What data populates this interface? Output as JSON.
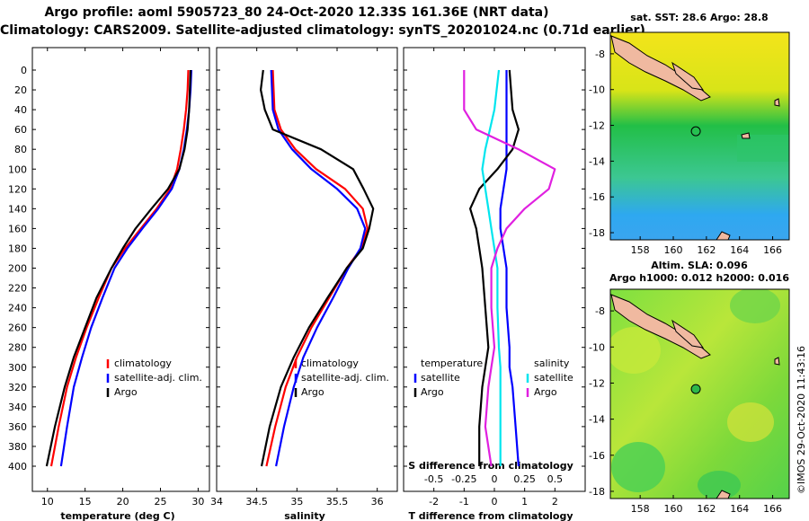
{
  "header": {
    "line1": "Argo profile: aoml 5905723_80 24-Oct-2020 12.33S 161.36E (NRT data)",
    "line2": "Climatology: CARS2009. Satellite-adjusted climatology: synTS_20201024.nc (0.71d earlier)"
  },
  "colors": {
    "climatology": "#ff0000",
    "satellite": "#0000ff",
    "argo": "#000000",
    "sat_salinity": "#00e5ee",
    "argo_salinity": "#e020e0"
  },
  "legend": {
    "climatology": "climatology",
    "satellite_adj": "satellite-adj. clim.",
    "argo": "Argo",
    "temperature_header": "temperature",
    "salinity_header": "salinity",
    "satellite": "satellite"
  },
  "chart_data": [
    {
      "type": "line",
      "title": "",
      "xlabel": "temperature (deg C)",
      "ylabel": "depth",
      "xlim": [
        8,
        31.5
      ],
      "ylim": [
        400,
        0
      ],
      "x_ticks": [
        10,
        15,
        20,
        25,
        30
      ],
      "y_ticks": [
        0,
        20,
        40,
        60,
        80,
        100,
        120,
        140,
        160,
        180,
        200,
        220,
        240,
        260,
        280,
        300,
        320,
        340,
        360,
        380,
        400
      ],
      "series": [
        {
          "name": "climatology",
          "x": [
            28.7,
            28.6,
            28.4,
            28.1,
            27.7,
            27.2,
            26.3,
            24.5,
            22.4,
            20.3,
            18.5,
            16.8,
            15.2,
            13.8,
            12.6,
            11.5,
            10.5
          ],
          "y": [
            0,
            20,
            40,
            60,
            80,
            100,
            120,
            140,
            160,
            180,
            200,
            230,
            260,
            290,
            320,
            360,
            400
          ]
        },
        {
          "name": "satellite-adj. clim.",
          "x": [
            29.1,
            29.0,
            28.8,
            28.5,
            28.1,
            27.5,
            26.5,
            24.7,
            22.6,
            20.6,
            18.9,
            17.3,
            15.8,
            14.6,
            13.5,
            12.6,
            11.8
          ],
          "y": [
            0,
            20,
            40,
            60,
            80,
            100,
            120,
            140,
            160,
            180,
            200,
            230,
            260,
            290,
            320,
            360,
            400
          ]
        },
        {
          "name": "Argo",
          "x": [
            29.0,
            28.9,
            28.8,
            28.6,
            28.2,
            27.5,
            26.0,
            23.8,
            21.7,
            20.0,
            18.5,
            16.5,
            15.0,
            13.5,
            12.3,
            11.0,
            9.9
          ],
          "y": [
            0,
            20,
            40,
            60,
            80,
            100,
            120,
            140,
            160,
            180,
            200,
            230,
            260,
            290,
            320,
            360,
            400
          ]
        }
      ]
    },
    {
      "type": "line",
      "title": "",
      "xlabel": "salinity",
      "ylabel": "",
      "xlim": [
        34,
        36.25
      ],
      "ylim": [
        400,
        0
      ],
      "x_ticks": [
        34,
        34.5,
        35,
        35.5,
        36
      ],
      "series": [
        {
          "name": "climatology",
          "x": [
            34.7,
            34.71,
            34.72,
            34.8,
            34.98,
            35.24,
            35.6,
            35.82,
            35.88,
            35.8,
            35.62,
            35.4,
            35.18,
            35.0,
            34.86,
            34.73,
            34.62
          ],
          "y": [
            0,
            20,
            40,
            60,
            80,
            100,
            120,
            140,
            160,
            180,
            200,
            230,
            260,
            290,
            320,
            360,
            400
          ]
        },
        {
          "name": "satellite-adj. clim.",
          "x": [
            34.68,
            34.69,
            34.7,
            34.77,
            34.94,
            35.18,
            35.5,
            35.75,
            35.85,
            35.79,
            35.64,
            35.45,
            35.25,
            35.08,
            34.96,
            34.84,
            34.74
          ],
          "y": [
            0,
            20,
            40,
            60,
            80,
            100,
            120,
            140,
            160,
            180,
            200,
            230,
            260,
            290,
            320,
            360,
            400
          ]
        },
        {
          "name": "Argo",
          "x": [
            34.58,
            34.55,
            34.6,
            34.7,
            35.3,
            35.7,
            35.83,
            35.95,
            35.9,
            35.82,
            35.62,
            35.38,
            35.15,
            34.96,
            34.8,
            34.66,
            34.56
          ],
          "y": [
            0,
            20,
            40,
            60,
            80,
            100,
            120,
            140,
            160,
            180,
            200,
            230,
            260,
            290,
            320,
            360,
            400
          ]
        }
      ]
    },
    {
      "type": "line",
      "title": "",
      "xlabel": "T difference from climatology",
      "ylabel": "",
      "xlim": [
        -3,
        3
      ],
      "ylim": [
        400,
        0
      ],
      "x_ticks": [
        -2,
        -1,
        0,
        1,
        2
      ],
      "secondary_xlabel": "S difference from climatology",
      "secondary_x_ticks": [
        "-0.5",
        "-0.25",
        "0",
        "0.25",
        "0.5"
      ],
      "series": [
        {
          "name": "temperature satellite",
          "x": [
            0.4,
            0.4,
            0.4,
            0.4,
            0.4,
            0.3,
            0.2,
            0.2,
            0.3,
            0.4,
            0.4,
            0.5,
            0.5,
            0.6,
            0.7,
            0.8
          ],
          "y": [
            0,
            40,
            60,
            80,
            100,
            120,
            140,
            160,
            180,
            200,
            240,
            280,
            300,
            320,
            360,
            400
          ]
        },
        {
          "name": "temperature Argo",
          "x": [
            0.5,
            0.6,
            0.8,
            0.6,
            0.1,
            -0.5,
            -0.8,
            -0.6,
            -0.5,
            -0.4,
            -0.3,
            -0.2,
            -0.3,
            -0.4,
            -0.5,
            -0.5
          ],
          "y": [
            0,
            40,
            60,
            80,
            100,
            120,
            140,
            160,
            180,
            200,
            240,
            280,
            300,
            320,
            360,
            400
          ]
        },
        {
          "name": "salinity satellite",
          "x": [
            0.15,
            0.0,
            -0.15,
            -0.3,
            -0.4,
            -0.3,
            -0.2,
            -0.1,
            0.0,
            0.1,
            0.1,
            0.15,
            0.2,
            0.2,
            0.2,
            0.2
          ],
          "y": [
            0,
            40,
            60,
            80,
            100,
            120,
            140,
            160,
            180,
            200,
            240,
            280,
            300,
            320,
            360,
            400
          ]
        },
        {
          "name": "salinity Argo",
          "x": [
            -1.0,
            -1.0,
            -0.6,
            0.8,
            2.0,
            1.8,
            1.0,
            0.4,
            0.1,
            -0.1,
            -0.1,
            0.0,
            -0.1,
            -0.2,
            -0.3,
            -0.1
          ],
          "y": [
            0,
            40,
            60,
            80,
            100,
            120,
            140,
            160,
            180,
            200,
            240,
            280,
            300,
            320,
            360,
            400
          ]
        }
      ]
    },
    {
      "type": "heatmap",
      "title": "sat. SST: 28.6 Argo: 28.8",
      "x_ticks": [
        158,
        160,
        162,
        164,
        166
      ],
      "y_ticks": [
        -8,
        -10,
        -12,
        -14,
        -16,
        -18
      ],
      "xlim": [
        156.2,
        167
      ],
      "ylim": [
        -18.4,
        -6.8
      ],
      "argo_location": [
        161.36,
        -12.33
      ]
    },
    {
      "type": "heatmap",
      "title": "Argo h1000: 0.012 h2000: 0.016",
      "subtitle": "Altim. SLA: 0.096",
      "x_ticks": [
        158,
        160,
        162,
        164,
        166
      ],
      "y_ticks": [
        -8,
        -10,
        -12,
        -14,
        -16,
        -18
      ],
      "xlim": [
        156.2,
        167
      ],
      "ylim": [
        -18.4,
        -6.8
      ],
      "argo_location": [
        161.36,
        -12.33
      ]
    }
  ],
  "watermark": "©IMOS 29-Oct-2020 11:43:16"
}
